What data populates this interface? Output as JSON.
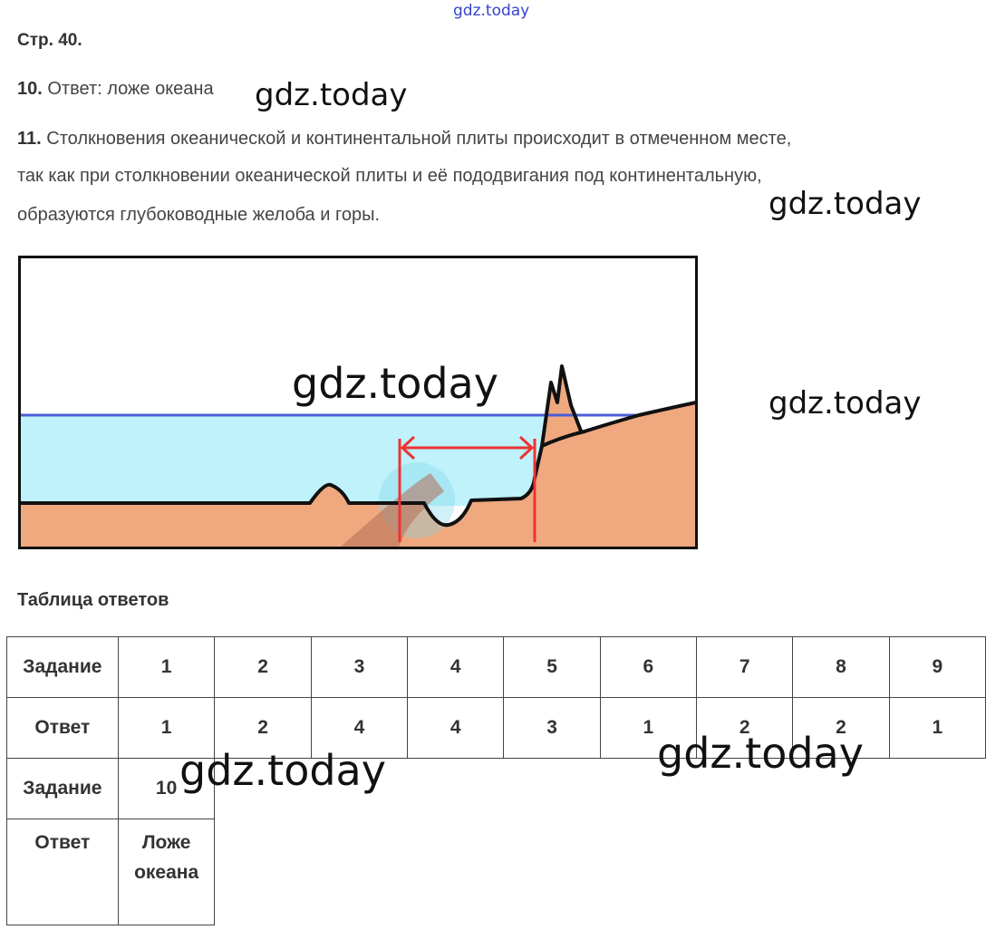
{
  "watermark": {
    "top": "gdz.today",
    "mark": "gdz.today"
  },
  "page_title": "Стр. 40.",
  "q10": {
    "number": "10.",
    "text": "Ответ: ложе океана"
  },
  "q11": {
    "number": "11.",
    "line1": "Столкновения океанической и континентальной плиты происходит в отмеченном месте,",
    "line2": "так как при столкновении океанической плиты и её пододвигания под континентальную,",
    "line3": "образуются глубоководные желоба и горы."
  },
  "diagram": {
    "colors": {
      "water": "#bff2fa",
      "land": "#f0a87f",
      "water_surface": "#4a5fd6",
      "marker": "#ee3333",
      "outline": "#111111"
    }
  },
  "table": {
    "title": "Таблица ответов",
    "row1": [
      "Задание",
      "1",
      "2",
      "3",
      "4",
      "5",
      "6",
      "7",
      "8",
      "9"
    ],
    "row2": [
      "Ответ",
      "1",
      "2",
      "4",
      "4",
      "3",
      "1",
      "2",
      "2",
      "1"
    ],
    "row3": [
      "Задание",
      "10"
    ],
    "row4_label": "Ответ",
    "row4_value_line1": "Ложе",
    "row4_value_line2": "океана"
  }
}
